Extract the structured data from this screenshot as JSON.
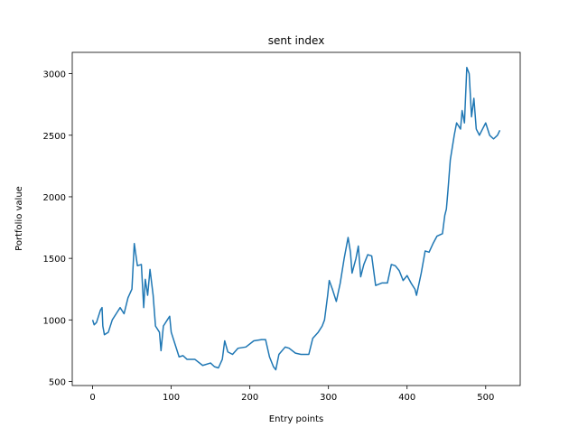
{
  "chart_data": {
    "type": "line",
    "title": "sent index",
    "x_label": "Entry points",
    "y_label": "Portfolio value",
    "x": [
      0,
      2,
      5,
      10,
      12,
      13,
      15,
      20,
      25,
      30,
      35,
      40,
      45,
      50,
      53,
      57,
      62,
      65,
      67,
      70,
      73,
      77,
      80,
      85,
      87,
      90,
      95,
      98,
      100,
      105,
      110,
      115,
      120,
      130,
      140,
      150,
      155,
      160,
      165,
      168,
      172,
      178,
      185,
      195,
      205,
      215,
      220,
      225,
      230,
      233,
      237,
      245,
      250,
      258,
      265,
      275,
      280,
      287,
      292,
      295,
      299,
      301,
      305,
      310,
      315,
      320,
      325,
      328,
      330,
      335,
      338,
      341,
      345,
      350,
      355,
      360,
      368,
      375,
      380,
      385,
      390,
      395,
      400,
      405,
      410,
      412,
      418,
      423,
      428,
      433,
      438,
      445,
      448,
      450,
      452,
      455,
      460,
      463,
      468,
      470,
      473,
      476,
      479,
      482,
      485,
      488,
      492,
      496,
      500,
      505,
      510,
      515,
      518
    ],
    "series": [
      {
        "color": "#1f77b4",
        "values": [
          1000,
          960,
          980,
          1080,
          1100,
          950,
          880,
          900,
          1000,
          1050,
          1100,
          1050,
          1180,
          1250,
          1620,
          1440,
          1450,
          1100,
          1330,
          1200,
          1410,
          1200,
          950,
          900,
          750,
          950,
          1000,
          1030,
          900,
          800,
          700,
          710,
          680,
          680,
          630,
          650,
          620,
          610,
          680,
          830,
          740,
          720,
          770,
          780,
          830,
          840,
          840,
          700,
          620,
          595,
          720,
          780,
          770,
          730,
          720,
          720,
          850,
          900,
          950,
          1000,
          1200,
          1320,
          1250,
          1150,
          1300,
          1500,
          1670,
          1550,
          1380,
          1500,
          1600,
          1350,
          1450,
          1530,
          1520,
          1280,
          1300,
          1300,
          1450,
          1440,
          1400,
          1320,
          1360,
          1300,
          1250,
          1200,
          1380,
          1560,
          1550,
          1620,
          1680,
          1700,
          1850,
          1900,
          2050,
          2300,
          2500,
          2600,
          2550,
          2700,
          2600,
          3050,
          3000,
          2650,
          2800,
          2550,
          2500,
          2550,
          2600,
          2500,
          2470,
          2500,
          2540
        ]
      }
    ],
    "xlim": [
      -25.9,
      543.9
    ],
    "ylim": [
      467,
      3173
    ],
    "xticks": [
      0,
      100,
      200,
      300,
      400,
      500
    ],
    "yticks": [
      500,
      1000,
      1500,
      2000,
      2500,
      3000
    ]
  }
}
